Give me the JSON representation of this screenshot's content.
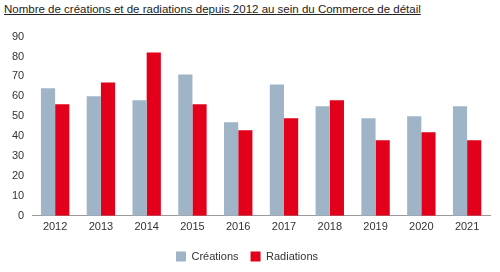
{
  "chart_data": {
    "type": "bar",
    "title": "Nombre de créations et de radiations depuis 2012 au sein du Commerce de détail",
    "categories": [
      "2012",
      "2013",
      "2014",
      "2015",
      "2016",
      "2017",
      "2018",
      "2019",
      "2020",
      "2021"
    ],
    "series": [
      {
        "name": "Créations",
        "color": "#a0b4c8",
        "values": [
          64,
          60,
          58,
          71,
          47,
          66,
          55,
          49,
          50,
          55
        ]
      },
      {
        "name": "Radiations",
        "color": "#e2001a",
        "values": [
          56,
          67,
          82,
          56,
          43,
          49,
          58,
          38,
          42,
          38
        ]
      }
    ],
    "ylim": [
      0,
      90
    ],
    "yticks": [
      0,
      10,
      20,
      30,
      40,
      50,
      60,
      70,
      80,
      90
    ],
    "grid": false,
    "legend": "bottom"
  }
}
